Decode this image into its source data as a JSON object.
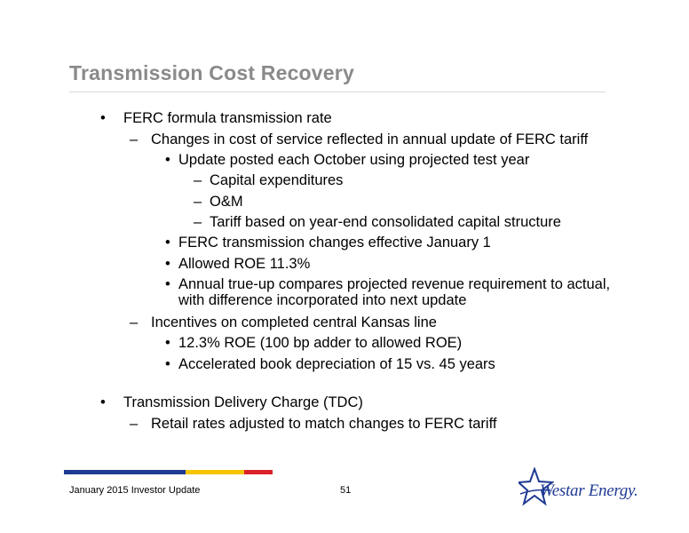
{
  "slide": {
    "title": "Transmission Cost Recovery"
  },
  "content": {
    "bullet1": "FERC formula transmission rate",
    "bullet1_sub1": "Changes in cost of service reflected in annual update of FERC tariff",
    "bullet1_sub1_a": "Update posted each October using projected test year",
    "bullet1_sub1_a_i": "Capital expenditures",
    "bullet1_sub1_a_ii": "O&M",
    "bullet1_sub1_a_iii": "Tariff based on year-end consolidated capital structure",
    "bullet1_sub1_b": "FERC transmission changes effective January 1",
    "bullet1_sub1_c": "Allowed ROE 11.3%",
    "bullet1_sub1_d_line1": "Annual true-up compares projected revenue requirement to actual,",
    "bullet1_sub1_d_line2": "with difference incorporated into next update",
    "bullet1_sub2": "Incentives on completed central Kansas line",
    "bullet1_sub2_a": "12.3% ROE (100 bp adder to allowed ROE)",
    "bullet1_sub2_b": "Accelerated book depreciation of 15 vs. 45 years",
    "bullet2": "Transmission Delivery Charge (TDC)",
    "bullet2_sub1": "Retail rates adjusted to match changes to FERC tariff"
  },
  "footer": {
    "left_text": "January 2015 Investor Update",
    "page_number": "51",
    "logo_text": "Westar Energy."
  },
  "colors": {
    "title": "#8a8a8a",
    "bar_blue": "#1f3a93",
    "bar_yellow": "#f5c400",
    "bar_red": "#d9222a"
  }
}
